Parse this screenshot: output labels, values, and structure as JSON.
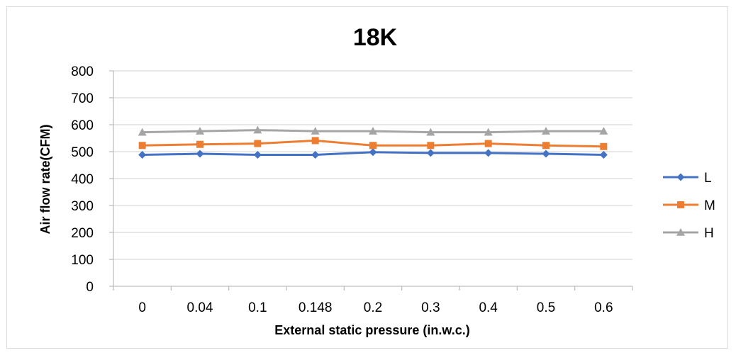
{
  "chart_data": {
    "type": "line",
    "title": "18K",
    "xlabel": "External static pressure (in.w.c.)",
    "ylabel": "Air flow rate(CFM)",
    "categories": [
      "0",
      "0.04",
      "0.1",
      "0.148",
      "0.2",
      "0.3",
      "0.4",
      "0.5",
      "0.6"
    ],
    "ylim": [
      0,
      800
    ],
    "yticks": [
      0,
      100,
      200,
      300,
      400,
      500,
      600,
      700,
      800
    ],
    "grid": true,
    "legend_position": "right",
    "series": [
      {
        "name": "L",
        "color": "#4472C4",
        "marker": "diamond",
        "values": [
          488,
          492,
          488,
          488,
          498,
          495,
          495,
          492,
          488
        ]
      },
      {
        "name": "M",
        "color": "#ED7D31",
        "marker": "square",
        "values": [
          523,
          527,
          530,
          541,
          523,
          523,
          530,
          523,
          519
        ]
      },
      {
        "name": "H",
        "color": "#A5A5A5",
        "marker": "triangle",
        "values": [
          572,
          576,
          580,
          576,
          576,
          572,
          572,
          576,
          576
        ]
      }
    ]
  }
}
